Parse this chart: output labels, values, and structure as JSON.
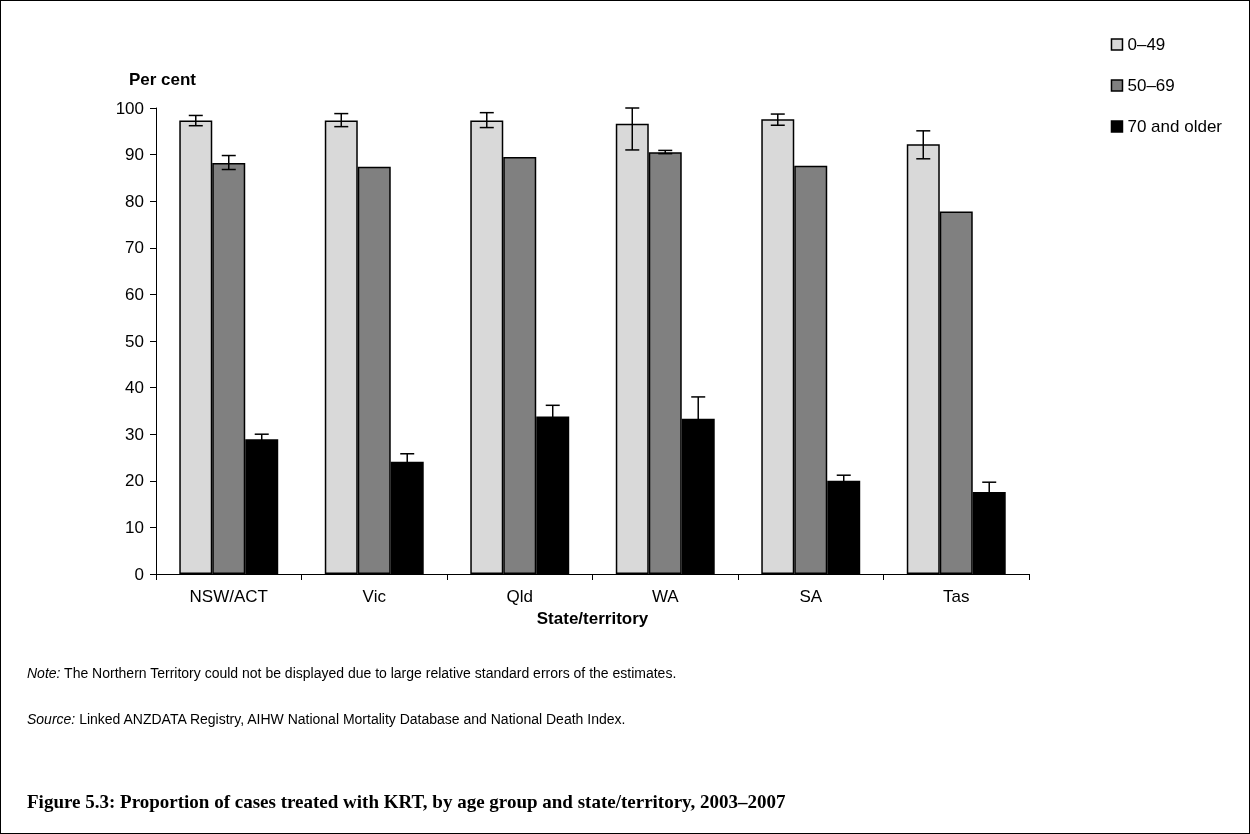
{
  "chart_data": {
    "type": "bar",
    "title": "Figure 5.3: Proportion of cases treated with KRT, by age group and state/territory, 2003–2007",
    "xlabel": "State/territory",
    "ylabel": "Per cent",
    "categories": [
      "NSW/ACT",
      "Vic",
      "Qld",
      "WA",
      "SA",
      "Tas"
    ],
    "series": [
      {
        "name": "0–49",
        "color": "#d9d9d9",
        "values": [
          97.3,
          97.3,
          97.3,
          96.6,
          97.6,
          92.2
        ],
        "errors": [
          [
            96.2,
            98.4
          ],
          [
            96.0,
            98.8
          ],
          [
            95.8,
            99.0
          ],
          [
            91.0,
            100.0
          ],
          [
            96.3,
            98.7
          ],
          [
            89.1,
            95.1
          ]
        ]
      },
      {
        "name": "50–69",
        "color": "#808080",
        "values": [
          88.2,
          87.4,
          89.5,
          90.5,
          87.6,
          77.8
        ],
        "errors": [
          [
            86.8,
            89.8
          ],
          null,
          null,
          [
            90.2,
            90.9
          ],
          null,
          null
        ]
      },
      {
        "name": "70 and older",
        "color": "#000000",
        "values": [
          28.9,
          24.1,
          33.8,
          33.3,
          20.0,
          17.6
        ],
        "errors": [
          1.1,
          1.7,
          2.4,
          4.7,
          1.2,
          2.1
        ]
      }
    ],
    "ylim": [
      0,
      100
    ],
    "yticks": [
      0,
      10,
      20,
      30,
      40,
      50,
      60,
      70,
      80,
      90,
      100
    ],
    "grid": false,
    "legend": "top right",
    "annotations": [
      "Note: The Northern Territory could not be displayed due to large relative standard errors of the estimates.",
      "Source: Linked ANZDATA Registry, AIHW National Mortality Database and National Death Index."
    ]
  }
}
